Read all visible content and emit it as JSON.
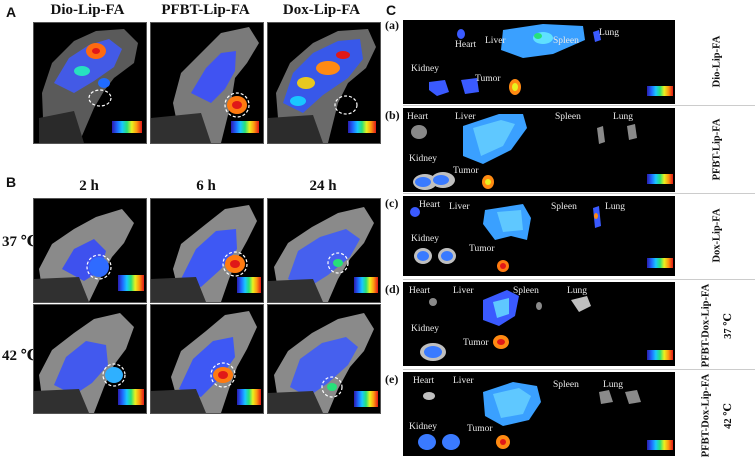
{
  "panel_a": {
    "letter": "A",
    "columns": [
      "Dio-Lip-FA",
      "PFBT-Lip-FA",
      "Dox-Lip-FA"
    ]
  },
  "panel_b": {
    "letter": "B",
    "times": [
      "2 h",
      "6 h",
      "24 h"
    ],
    "temperatures": [
      "37 ℃",
      "42 ℃"
    ]
  },
  "panel_c": {
    "letter": "C",
    "rows": [
      {
        "letter": "(a)",
        "side_label": "Dio-Lip-FA",
        "organs": {
          "heart": "Heart",
          "liver": "Liver",
          "spleen": "Spleen",
          "lung": "Lung",
          "kidney": "Kidney",
          "tumor": "Tumor"
        }
      },
      {
        "letter": "(b)",
        "side_label": "PFBT-Lip-FA",
        "organs": {
          "heart": "Heart",
          "liver": "Liver",
          "spleen": "Spleen",
          "lung": "Lung",
          "kidney": "Kidney",
          "tumor": "Tumor"
        }
      },
      {
        "letter": "(c)",
        "side_label": "Dox-Lip-FA",
        "organs": {
          "heart": "Heart",
          "liver": "Liver",
          "spleen": "Spleen",
          "lung": "Lung",
          "kidney": "Kidney",
          "tumor": "Tumor"
        }
      },
      {
        "letter": "(d)",
        "side_label": "PFBT-Dox-Lip-FA",
        "side_label_2": "37 ℃",
        "organs": {
          "heart": "Heart",
          "liver": "Liver",
          "spleen": "Spleen",
          "lung": "Lung",
          "kidney": "Kidney",
          "tumor": "Tumor"
        }
      },
      {
        "letter": "(e)",
        "side_label": "PFBT-Dox-Lip-FA",
        "side_label_2": "42 ℃",
        "organs": {
          "heart": "Heart",
          "liver": "Liver",
          "spleen": "Spleen",
          "lung": "Lung",
          "kidney": "Kidney",
          "tumor": "Tumor"
        }
      }
    ]
  },
  "colors": {
    "background": "#000000",
    "signal_low": "#2f4bff",
    "signal_high": "#e01818",
    "tissue": "#bfbfbf"
  }
}
